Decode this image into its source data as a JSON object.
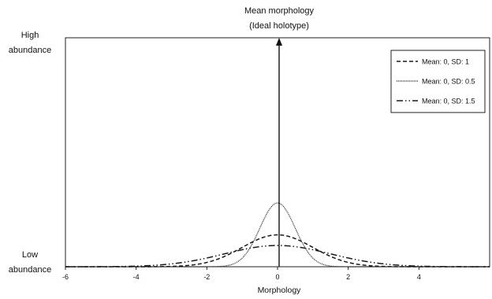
{
  "chart_data": {
    "type": "line",
    "title": "",
    "annotation": {
      "line1": "Mean morphology",
      "line2": "(Ideal holotype)",
      "x": 0
    },
    "xlabel": "Morphology",
    "ylabel_high": [
      "High",
      "abundance"
    ],
    "ylabel_low": [
      "Low",
      "abundance"
    ],
    "xlim": [
      -6,
      6
    ],
    "xticks": [
      -6,
      -4,
      -2,
      0,
      2,
      4
    ],
    "grid": false,
    "legend_position": "top-right",
    "series": [
      {
        "name": "Mean: 0, SD: 1",
        "mean": 0,
        "sd": 1,
        "style": "dashed"
      },
      {
        "name": "Mean: 0, SD: 0.5",
        "mean": 0,
        "sd": 0.5,
        "style": "dotted"
      },
      {
        "name": "Mean: 0, SD: 1.5",
        "mean": 0,
        "sd": 1.5,
        "style": "dash-dot-dot"
      }
    ]
  }
}
